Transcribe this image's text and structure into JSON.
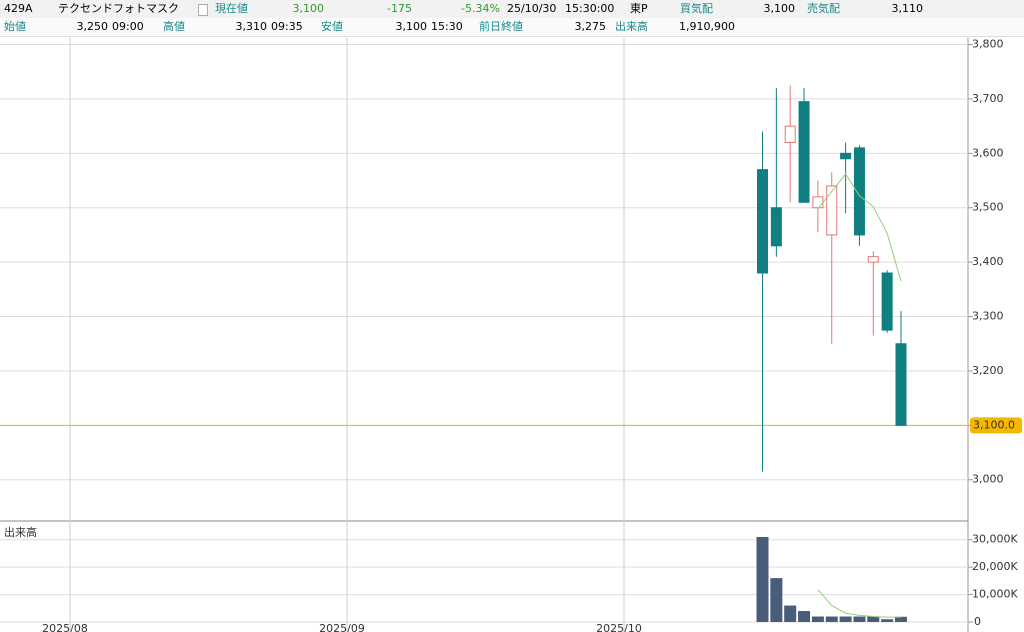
{
  "header": {
    "row1": {
      "code": "429A",
      "name": "テクセンドフォトマスク",
      "price_label": "現在値",
      "price": "3,100",
      "change": "-175",
      "change_pct": "-5.34%",
      "date": "25/10/30",
      "time": "15:30:00",
      "market": "東P",
      "bid_label": "買気配",
      "bid": "3,100",
      "ask_label": "売気配",
      "ask": "3,110"
    },
    "row2": {
      "open_label": "始値",
      "open": "3,250",
      "open_time": "09:00",
      "high_label": "高値",
      "high": "3,310",
      "high_time": "09:35",
      "low_label": "安値",
      "low": "3,100",
      "low_time": "15:30",
      "prev_label": "前日終値",
      "prev": "3,275",
      "volume_label": "出来高",
      "volume": "1,910,900"
    }
  },
  "chart_data": {
    "type": "candlestick",
    "categories": [
      "2025/08",
      null,
      null,
      null,
      null,
      null,
      null,
      null,
      null,
      null,
      null,
      null,
      null,
      null,
      null,
      null,
      null,
      null,
      null,
      null,
      "2025/09",
      null,
      null,
      null,
      null,
      null,
      null,
      null,
      null,
      null,
      null,
      null,
      null,
      null,
      null,
      null,
      null,
      null,
      null,
      null,
      "2025/10",
      null,
      null,
      null,
      null,
      null,
      null,
      null,
      null,
      null,
      null,
      null,
      null,
      null,
      null,
      null,
      null,
      null,
      null,
      null,
      null
    ],
    "open": [
      null,
      null,
      null,
      null,
      null,
      null,
      null,
      null,
      null,
      null,
      null,
      null,
      null,
      null,
      null,
      null,
      null,
      null,
      null,
      null,
      null,
      null,
      null,
      null,
      null,
      null,
      null,
      null,
      null,
      null,
      null,
      null,
      null,
      null,
      null,
      null,
      null,
      null,
      null,
      null,
      null,
      null,
      null,
      null,
      null,
      null,
      null,
      null,
      null,
      null,
      3570,
      3500,
      3620,
      3695,
      3500,
      3450,
      3600,
      3610,
      3400,
      3380,
      3250
    ],
    "high": [
      null,
      null,
      null,
      null,
      null,
      null,
      null,
      null,
      null,
      null,
      null,
      null,
      null,
      null,
      null,
      null,
      null,
      null,
      null,
      null,
      null,
      null,
      null,
      null,
      null,
      null,
      null,
      null,
      null,
      null,
      null,
      null,
      null,
      null,
      null,
      null,
      null,
      null,
      null,
      null,
      null,
      null,
      null,
      null,
      null,
      null,
      null,
      null,
      null,
      null,
      3640,
      3720,
      3725,
      3720,
      3550,
      3565,
      3620,
      3615,
      3420,
      3385,
      3310
    ],
    "low": [
      null,
      null,
      null,
      null,
      null,
      null,
      null,
      null,
      null,
      null,
      null,
      null,
      null,
      null,
      null,
      null,
      null,
      null,
      null,
      null,
      null,
      null,
      null,
      null,
      null,
      null,
      null,
      null,
      null,
      null,
      null,
      null,
      null,
      null,
      null,
      null,
      null,
      null,
      null,
      null,
      null,
      null,
      null,
      null,
      null,
      null,
      null,
      null,
      null,
      null,
      3015,
      3410,
      3510,
      3510,
      3455,
      3250,
      3490,
      3430,
      3265,
      3270,
      3100
    ],
    "close": [
      null,
      null,
      null,
      null,
      null,
      null,
      null,
      null,
      null,
      null,
      null,
      null,
      null,
      null,
      null,
      null,
      null,
      null,
      null,
      null,
      null,
      null,
      null,
      null,
      null,
      null,
      null,
      null,
      null,
      null,
      null,
      null,
      null,
      null,
      null,
      null,
      null,
      null,
      null,
      null,
      null,
      null,
      null,
      null,
      null,
      null,
      null,
      null,
      null,
      null,
      3380,
      3430,
      3650,
      3510,
      3520,
      3540,
      3590,
      3450,
      3410,
      3275,
      3100
    ],
    "up_color": "#e87474",
    "down_color": "#0f7f80",
    "ma": {
      "color": "#8fd27a",
      "values": [
        null,
        null,
        null,
        null,
        null,
        null,
        null,
        null,
        null,
        null,
        null,
        null,
        null,
        null,
        null,
        null,
        null,
        null,
        null,
        null,
        null,
        null,
        null,
        null,
        null,
        null,
        null,
        null,
        null,
        null,
        null,
        null,
        null,
        null,
        null,
        null,
        null,
        null,
        null,
        null,
        null,
        null,
        null,
        null,
        null,
        null,
        null,
        null,
        null,
        null,
        null,
        null,
        null,
        null,
        3498,
        3530,
        3562,
        3522,
        3502,
        3453,
        3365
      ]
    },
    "ylim": [
      2926,
      3812
    ],
    "yticks": [
      {
        "value": 3000,
        "label": "3,000"
      },
      {
        "value": 3100,
        "label": "3,100"
      },
      {
        "value": 3200,
        "label": "3,200"
      },
      {
        "value": 3300,
        "label": "3,300"
      },
      {
        "value": 3400,
        "label": "3,400"
      },
      {
        "value": 3500,
        "label": "3,500"
      },
      {
        "value": 3600,
        "label": "3,600"
      },
      {
        "value": 3700,
        "label": "3,700"
      },
      {
        "value": 3800,
        "label": "3,800"
      }
    ],
    "last": {
      "value": 3100,
      "label": "3,100.0",
      "color": "#f5b800"
    },
    "grid": true,
    "volume": {
      "label": "出来高",
      "color": "#4a5d78",
      "values": [
        null,
        null,
        null,
        null,
        null,
        null,
        null,
        null,
        null,
        null,
        null,
        null,
        null,
        null,
        null,
        null,
        null,
        null,
        null,
        null,
        null,
        null,
        null,
        null,
        null,
        null,
        null,
        null,
        null,
        null,
        null,
        null,
        null,
        null,
        null,
        null,
        null,
        null,
        null,
        null,
        null,
        null,
        null,
        null,
        null,
        null,
        null,
        null,
        null,
        null,
        31000,
        16000,
        6000,
        4000,
        2000,
        2000,
        2000,
        2000,
        2000,
        1000,
        1910.9
      ],
      "ma": {
        "color": "#8fd27a",
        "values": [
          null,
          null,
          null,
          null,
          null,
          null,
          null,
          null,
          null,
          null,
          null,
          null,
          null,
          null,
          null,
          null,
          null,
          null,
          null,
          null,
          null,
          null,
          null,
          null,
          null,
          null,
          null,
          null,
          null,
          null,
          null,
          null,
          null,
          null,
          null,
          null,
          null,
          null,
          null,
          null,
          null,
          null,
          null,
          null,
          null,
          null,
          null,
          null,
          null,
          null,
          null,
          null,
          null,
          null,
          11800,
          6000,
          3200,
          2400,
          2000,
          1800,
          1782
        ]
      },
      "ylim": [
        0,
        35000
      ],
      "yticks": [
        0,
        {
          "value": 10000,
          "label": "10,000K"
        },
        {
          "value": 20000,
          "label": "20,000K"
        },
        {
          "value": 30000,
          "label": "30,000K"
        }
      ]
    }
  }
}
